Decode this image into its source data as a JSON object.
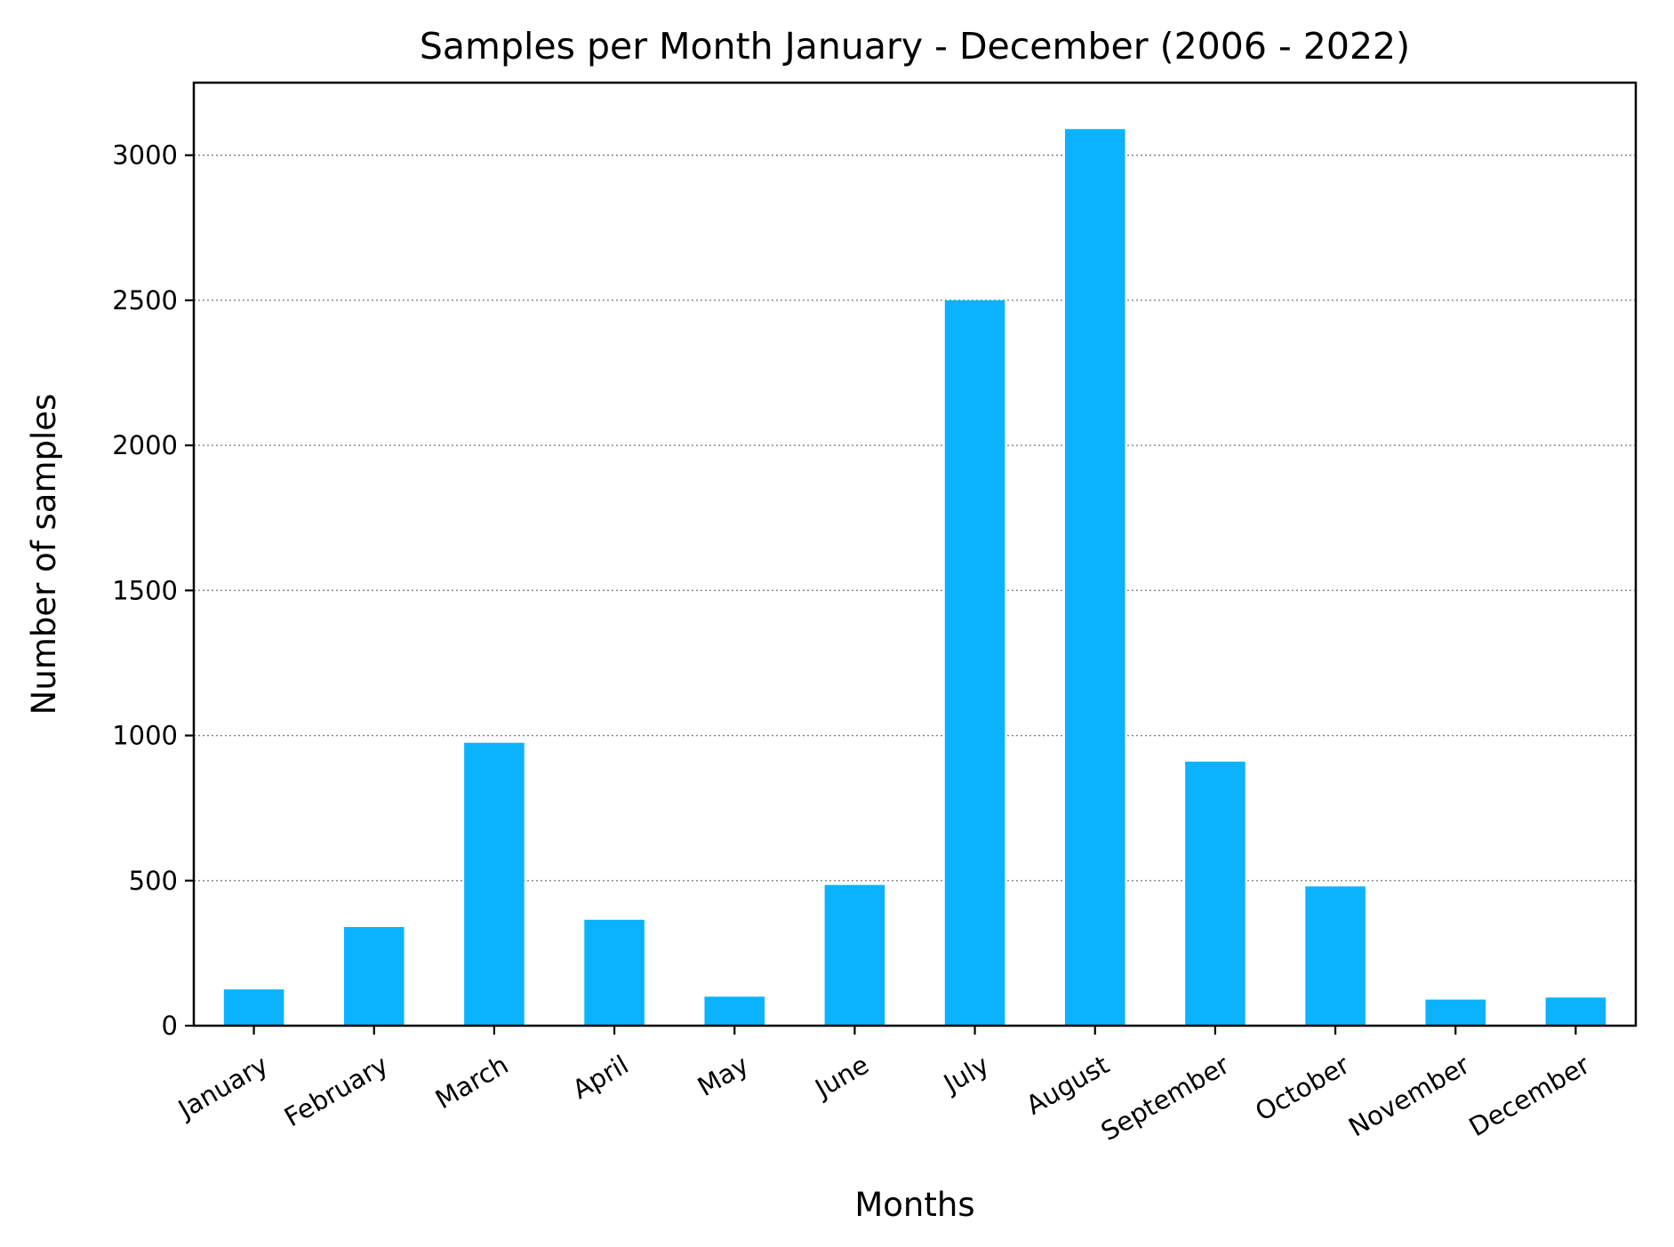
{
  "chart_data": {
    "type": "bar",
    "title": "Samples per Month January - December (2006 - 2022)",
    "xlabel": "Months",
    "ylabel": "Number of samples",
    "categories": [
      "January",
      "February",
      "March",
      "April",
      "May",
      "June",
      "July",
      "August",
      "September",
      "October",
      "November",
      "December"
    ],
    "values": [
      125,
      340,
      975,
      365,
      100,
      485,
      2500,
      3090,
      910,
      480,
      90,
      97
    ],
    "ylim": [
      0,
      3250
    ],
    "yticks": [
      0,
      500,
      1000,
      1500,
      2000,
      2500,
      3000
    ],
    "ytick_labels": [
      "0",
      "500",
      "1000",
      "1500",
      "2000",
      "2500",
      "3000"
    ],
    "grid": "horizontal dotted",
    "bar_color": "#0bb3ff",
    "grid_color": "#808080"
  }
}
